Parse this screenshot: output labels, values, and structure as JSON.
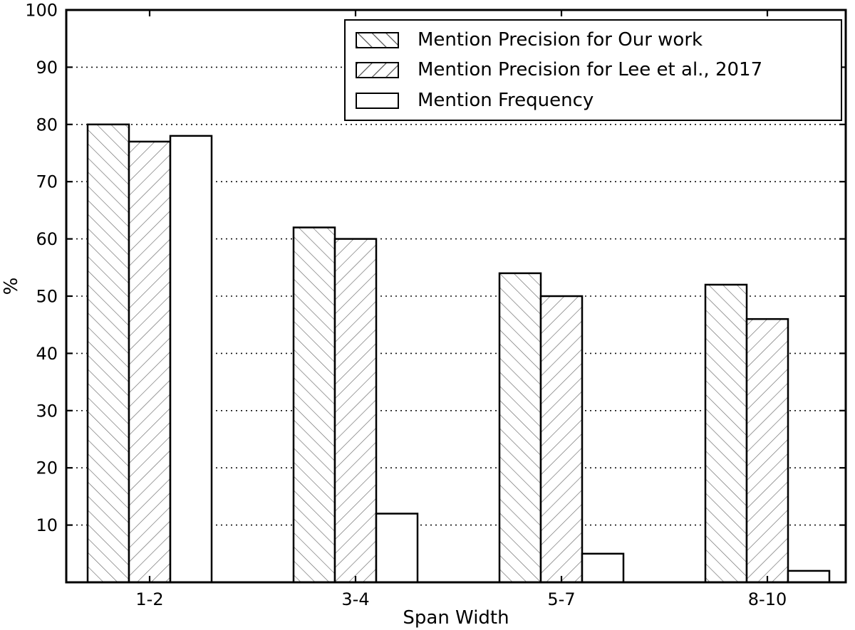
{
  "chart_data": {
    "type": "bar",
    "categories": [
      "1-2",
      "3-4",
      "5-7",
      "8-10"
    ],
    "series": [
      {
        "name": "Mention Precision for Our work",
        "hatch": "\\",
        "values": [
          80,
          62,
          54,
          52
        ]
      },
      {
        "name": "Mention Precision for Lee et al., 2017",
        "hatch": "/",
        "values": [
          77,
          60,
          50,
          46
        ]
      },
      {
        "name": "Mention Frequency",
        "hatch": "none",
        "values": [
          78,
          12,
          5,
          2
        ]
      }
    ],
    "title": "",
    "xlabel": "Span Width",
    "ylabel": "%",
    "ylim": [
      0,
      100
    ],
    "yticks": [
      10,
      20,
      30,
      40,
      50,
      60,
      70,
      80,
      90,
      100
    ],
    "grid": "horizontal-dotted",
    "legend_position": "upper-right-inside",
    "bar_fill": "#ffffff",
    "edge_color": "#000000",
    "hatch_color": "#6a6a6a",
    "grid_color": "#111111",
    "text_color": "#000000"
  },
  "legend": {
    "items": [
      {
        "label": "Mention Precision for Our work"
      },
      {
        "label": "Mention Precision for Lee et al., 2017"
      },
      {
        "label": "Mention Frequency"
      }
    ]
  }
}
